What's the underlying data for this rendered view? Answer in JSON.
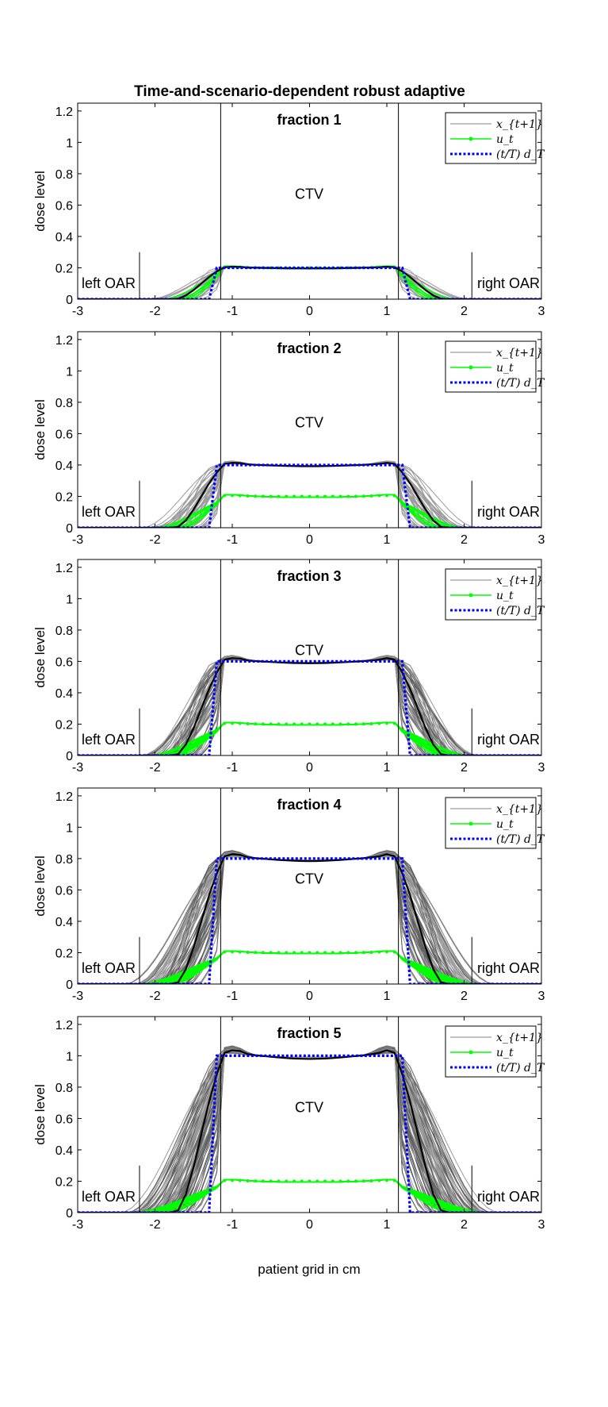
{
  "figure": {
    "title": "Time-and-scenario-dependent robust adaptive",
    "ylabel": "dose level",
    "xlabel": "patient grid in cm",
    "annotations": {
      "left_oar": "left OAR",
      "right_oar": "right OAR",
      "ctv": "CTV"
    },
    "legend": {
      "x": "x_{t+1}",
      "u": "u_t",
      "d": "(t/T) d_T"
    },
    "colors": {
      "x_scenarios": "#808080",
      "x_mean": "#000000",
      "u": "#00ff00",
      "d": "#0000ff"
    }
  },
  "chart_data": [
    {
      "type": "line",
      "title": "fraction  1",
      "xlim": [
        -3,
        3
      ],
      "ylim": [
        0,
        1.25
      ],
      "xticks": [
        -3,
        -2,
        -1,
        0,
        1,
        2,
        3
      ],
      "yticks": [
        0,
        0.2,
        0.4,
        0.6,
        0.8,
        1,
        1.2
      ],
      "ctv_bounds": [
        -1.15,
        1.15
      ],
      "oar_markers": [
        -2.2,
        2.1
      ],
      "target_level": 0.2,
      "u_level": 0.2,
      "n_scenarios": 20
    },
    {
      "type": "line",
      "title": "fraction  2",
      "xlim": [
        -3,
        3
      ],
      "ylim": [
        0,
        1.25
      ],
      "xticks": [
        -3,
        -2,
        -1,
        0,
        1,
        2,
        3
      ],
      "yticks": [
        0,
        0.2,
        0.4,
        0.6,
        0.8,
        1,
        1.2
      ],
      "ctv_bounds": [
        -1.15,
        1.15
      ],
      "oar_markers": [
        -2.2,
        2.1
      ],
      "target_level": 0.4,
      "u_level": 0.2,
      "n_scenarios": 40
    },
    {
      "type": "line",
      "title": "fraction  3",
      "xlim": [
        -3,
        3
      ],
      "ylim": [
        0,
        1.25
      ],
      "xticks": [
        -3,
        -2,
        -1,
        0,
        1,
        2,
        3
      ],
      "yticks": [
        0,
        0.2,
        0.4,
        0.6,
        0.8,
        1,
        1.2
      ],
      "ctv_bounds": [
        -1.15,
        1.15
      ],
      "oar_markers": [
        -2.2,
        2.1
      ],
      "target_level": 0.6,
      "u_level": 0.2,
      "n_scenarios": 60
    },
    {
      "type": "line",
      "title": "fraction  4",
      "xlim": [
        -3,
        3
      ],
      "ylim": [
        0,
        1.25
      ],
      "xticks": [
        -3,
        -2,
        -1,
        0,
        1,
        2,
        3
      ],
      "yticks": [
        0,
        0.2,
        0.4,
        0.6,
        0.8,
        1,
        1.2
      ],
      "ctv_bounds": [
        -1.15,
        1.15
      ],
      "oar_markers": [
        -2.2,
        2.1
      ],
      "target_level": 0.8,
      "u_level": 0.2,
      "n_scenarios": 80
    },
    {
      "type": "line",
      "title": "fraction  5",
      "xlim": [
        -3,
        3
      ],
      "ylim": [
        0,
        1.25
      ],
      "xticks": [
        -3,
        -2,
        -1,
        0,
        1,
        2,
        3
      ],
      "yticks": [
        0,
        0.2,
        0.4,
        0.6,
        0.8,
        1,
        1.2
      ],
      "ctv_bounds": [
        -1.15,
        1.15
      ],
      "oar_markers": [
        -2.2,
        2.1
      ],
      "target_level": 1.0,
      "u_level": 0.2,
      "n_scenarios": 100
    }
  ]
}
